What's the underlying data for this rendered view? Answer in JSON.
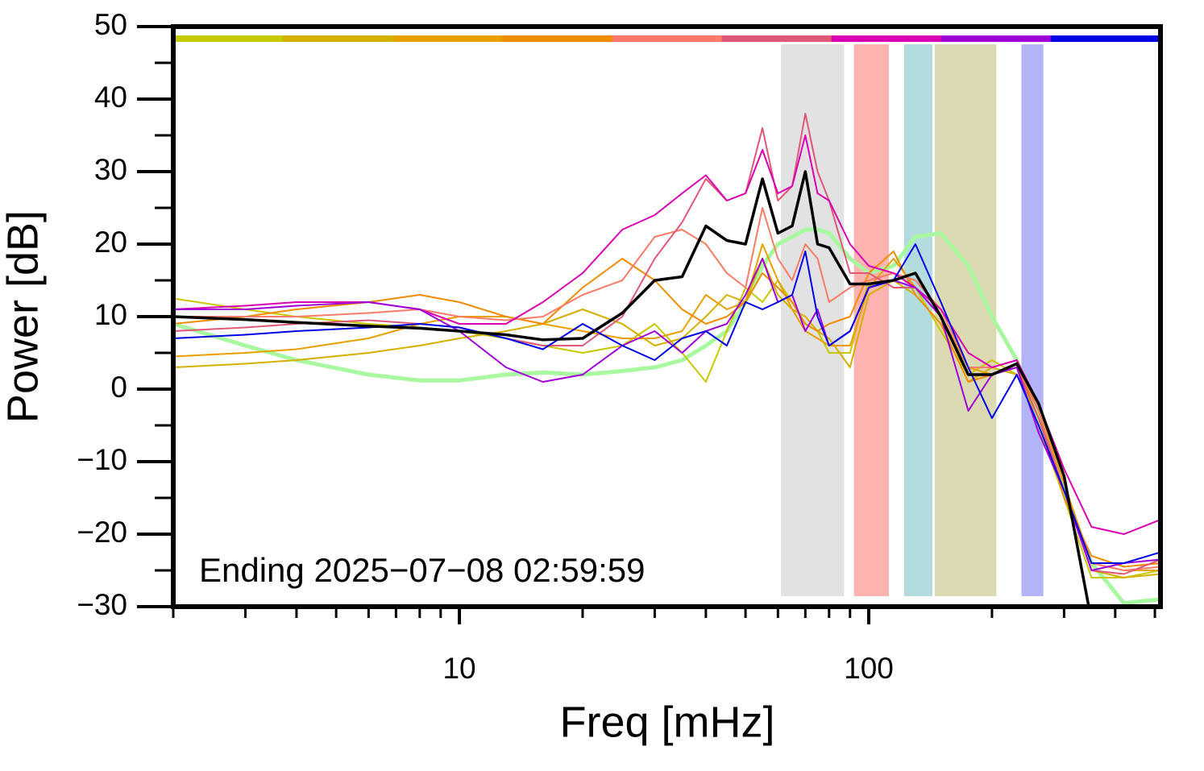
{
  "chart_data": {
    "type": "line",
    "x_label": "Freq [mHz]",
    "y_label": "Power [dB]",
    "annotation": "Ending 2025−07−08 02:59:59",
    "xscale": "log",
    "xlim": [
      2,
      516
    ],
    "ylim": [
      -30,
      50
    ],
    "xticks": [
      10,
      100
    ],
    "xminorticks": [
      2,
      3,
      4,
      5,
      6,
      7,
      8,
      9,
      20,
      30,
      40,
      50,
      60,
      70,
      80,
      90,
      200,
      300,
      400,
      500
    ],
    "yticks": [
      {
        "value": -30,
        "label": "−30"
      },
      {
        "value": -20,
        "label": "−20"
      },
      {
        "value": -10,
        "label": "−10"
      },
      0,
      10,
      20,
      30,
      40,
      50
    ],
    "yminorticks": [
      -25,
      -15,
      -5,
      5,
      15,
      25,
      35,
      45
    ],
    "bands": [
      {
        "from": 61,
        "to": 87,
        "color": "#e2e2e2"
      },
      {
        "from": 92,
        "to": 112,
        "color": "#ffb3b0"
      },
      {
        "from": 122,
        "to": 143,
        "color": "#b3dcdf"
      },
      {
        "from": 145,
        "to": 205,
        "color": "#dcdab2"
      },
      {
        "from": 236,
        "to": 267,
        "color": "#b3b3f8"
      }
    ],
    "x": [
      2,
      3,
      4,
      6,
      8,
      10,
      13,
      16,
      20,
      25,
      30,
      35,
      40,
      45,
      50,
      55,
      60,
      65,
      70,
      75,
      80,
      90,
      100,
      115,
      130,
      150,
      175,
      200,
      230,
      260,
      300,
      350,
      420,
      516
    ],
    "series": [
      {
        "color": "#a8f8a0",
        "width": 5,
        "values": [
          9,
          6,
          4,
          2,
          1.2,
          1.2,
          2,
          2.3,
          2,
          2.5,
          3,
          4,
          6,
          8,
          12,
          17,
          20,
          21,
          22,
          22,
          21.5,
          18,
          16,
          17,
          21,
          21.5,
          17,
          10,
          4,
          -4,
          -14,
          -24,
          -29.5,
          -29
        ]
      },
      {
        "color": "#c8c800",
        "width": 2,
        "values": [
          12.5,
          11,
          10,
          9,
          8.5,
          8,
          7,
          6,
          5,
          6,
          9,
          5,
          1,
          8,
          14,
          12,
          15,
          12,
          9,
          8,
          5,
          5,
          15,
          16,
          14,
          8,
          2,
          4,
          2,
          -5,
          -15,
          -26,
          -26,
          -25
        ]
      },
      {
        "color": "#d4b000",
        "width": 2,
        "values": [
          3,
          3.5,
          4,
          5,
          6,
          7,
          8,
          9,
          11,
          9,
          6,
          7,
          10,
          13,
          12,
          18,
          13,
          11,
          10,
          8,
          7,
          3,
          13,
          15,
          13,
          9,
          1,
          3,
          2,
          -4,
          -14,
          -25,
          -26,
          -25.5
        ]
      },
      {
        "color": "#e8a000",
        "width": 2,
        "values": [
          4.5,
          5,
          5.5,
          7,
          9,
          10,
          10,
          9,
          8,
          7,
          7,
          8,
          13,
          11,
          12,
          20,
          15,
          11,
          8,
          7,
          6,
          6,
          14,
          18,
          14,
          10,
          3,
          2,
          3,
          -3,
          -13,
          -24,
          -25,
          -25
        ]
      },
      {
        "color": "#f08c00",
        "width": 2,
        "values": [
          9,
          10,
          11,
          12,
          13,
          12,
          10,
          9,
          14,
          18,
          15,
          11,
          9,
          10,
          12,
          16,
          14,
          12,
          9,
          8,
          9,
          10,
          16,
          19,
          13,
          9,
          1,
          2,
          3,
          -3,
          -15,
          -23,
          -24.5,
          -24
        ]
      },
      {
        "color": "#f87c68",
        "width": 2,
        "values": [
          10,
          10,
          10,
          10.5,
          11,
          10,
          9.5,
          10,
          13,
          15,
          21,
          22,
          20,
          16,
          14,
          25,
          18,
          15,
          20,
          18,
          12,
          14,
          15,
          16,
          15,
          11,
          3,
          3,
          4,
          -3,
          -14,
          -24,
          -25,
          -24.5
        ]
      },
      {
        "color": "#e05878",
        "width": 2,
        "values": [
          8,
          8.5,
          9,
          9.5,
          9,
          8.5,
          7,
          6,
          6,
          10,
          18,
          23,
          29,
          26,
          27,
          36,
          26,
          28,
          38,
          30,
          26,
          16,
          16,
          14,
          14,
          10,
          2,
          2,
          3,
          -4,
          -14,
          -25,
          -25.5,
          -23.5
        ]
      },
      {
        "color": "#d800b0",
        "width": 2,
        "values": [
          11,
          11.5,
          12,
          12,
          11,
          9,
          9,
          12,
          16,
          22,
          24,
          27,
          29.5,
          26,
          27,
          33,
          27,
          28,
          35,
          27,
          26,
          20,
          17,
          16,
          14,
          11,
          5,
          3,
          4,
          -2,
          -11,
          -19,
          -20,
          -18
        ]
      },
      {
        "color": "#a000d8",
        "width": 2,
        "values": [
          11,
          11,
          11.5,
          12,
          11,
          8,
          3,
          1,
          2,
          6,
          8,
          5,
          8,
          9,
          13,
          18,
          12,
          13,
          8,
          11,
          6,
          8,
          14,
          15,
          14,
          10,
          -3,
          2,
          3,
          -6,
          -14,
          -25,
          -24,
          -23.5
        ]
      },
      {
        "color": "#0000e8",
        "width": 2,
        "values": [
          7,
          7.5,
          8,
          8.5,
          9,
          8.5,
          7,
          5.5,
          9,
          6,
          4,
          7,
          8,
          6,
          12,
          11,
          12,
          13,
          19,
          10,
          6,
          8,
          14,
          15,
          20,
          12,
          3,
          -4,
          2,
          -5,
          -14,
          -24,
          -24,
          -22.5
        ]
      },
      {
        "color": "#000000",
        "width": 3.5,
        "values": [
          10,
          9.6,
          9.2,
          8.7,
          8.4,
          8,
          7.5,
          6.8,
          7,
          10.5,
          15,
          15.5,
          22.5,
          20.5,
          20,
          29,
          21.5,
          22.5,
          30,
          20,
          19.5,
          14.5,
          14.5,
          15,
          16,
          10,
          2,
          2,
          3.5,
          -2,
          -12,
          -32,
          null,
          null
        ]
      }
    ]
  }
}
